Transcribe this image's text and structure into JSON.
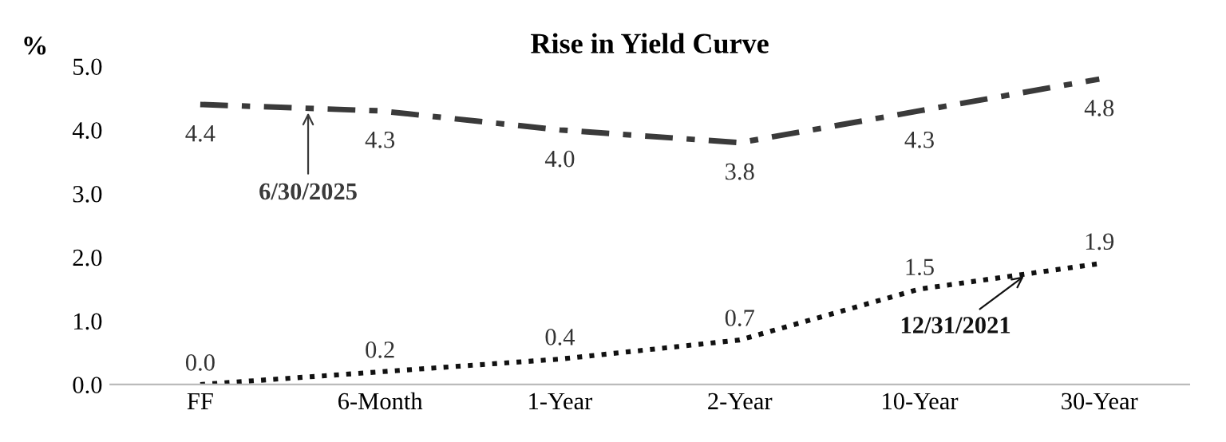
{
  "chart_data": {
    "type": "line",
    "title": "Rise in Yield Curve",
    "ylabel": "%",
    "categories": [
      "FF",
      "6-Month",
      "1-Year",
      "2-Year",
      "10-Year",
      "30-Year"
    ],
    "series": [
      {
        "name": "6/30/2025",
        "color": "#3a3a3a",
        "line_style": "dashed",
        "values": [
          4.4,
          4.3,
          4.0,
          3.8,
          4.3,
          4.8
        ],
        "value_labels": [
          "4.4",
          "4.3",
          "4.0",
          "3.8",
          "4.3",
          "4.8"
        ]
      },
      {
        "name": "12/31/2021",
        "color": "#111111",
        "line_style": "dotted",
        "values": [
          0.0,
          0.2,
          0.4,
          0.7,
          1.5,
          1.9
        ],
        "value_labels": [
          "0.0",
          "0.2",
          "0.4",
          "0.7",
          "1.5",
          "1.9"
        ]
      }
    ],
    "ylim": [
      0,
      5
    ],
    "yticks": [
      {
        "value": 0,
        "label": "0.0"
      },
      {
        "value": 1,
        "label": "1.0"
      },
      {
        "value": 2,
        "label": "2.0"
      },
      {
        "value": 3,
        "label": "3.0"
      },
      {
        "value": 4,
        "label": "4.0"
      },
      {
        "value": 5,
        "label": "5.0"
      }
    ],
    "grid": false,
    "marker": "none"
  }
}
